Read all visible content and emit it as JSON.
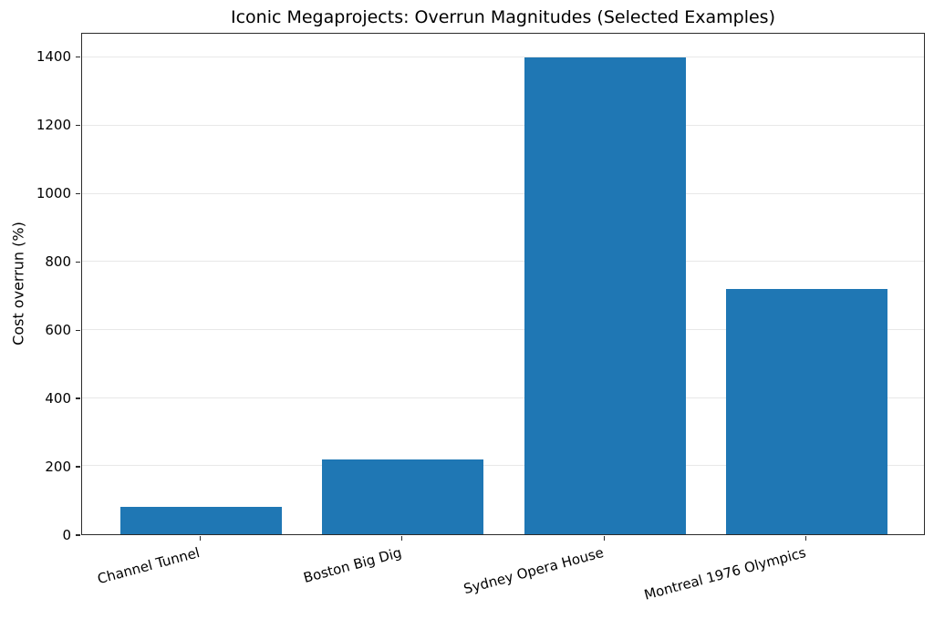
{
  "chart_data": {
    "type": "bar",
    "title": "Iconic Megaprojects: Overrun Magnitudes (Selected Examples)",
    "categories": [
      "Channel Tunnel",
      "Boston Big Dig",
      "Sydney Opera House",
      "Montreal 1976 Olympics"
    ],
    "values": [
      80,
      220,
      1400,
      720
    ],
    "xlabel": "",
    "ylabel": "Cost overrun (%)",
    "ylim": [
      0,
      1470
    ],
    "yticks": [
      0,
      200,
      400,
      600,
      800,
      1000,
      1200,
      1400
    ],
    "grid": "horizontal-only",
    "legend": "none",
    "bar_color": "#1f77b4",
    "grid_color": "#e8e8e8",
    "spine_color": "#2b2b2b",
    "background_color": "#ffffff",
    "xtick_rotation_deg": 15
  }
}
